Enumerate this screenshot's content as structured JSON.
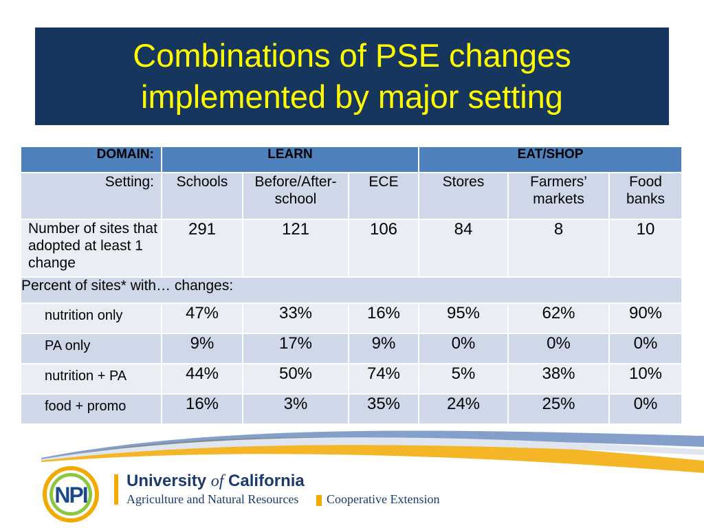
{
  "slide": {
    "title_line1": "Combinations of PSE changes",
    "title_line2": "implemented by major setting"
  },
  "table": {
    "domain_label": "DOMAIN:",
    "domains": [
      "LEARN",
      "EAT/SHOP"
    ],
    "setting_label": "Setting:",
    "settings": [
      "Schools",
      "Before/After-school",
      "ECE",
      "Stores",
      "Farmers’ markets",
      "Food banks"
    ],
    "count_label": "Number of sites that adopted at least 1 change",
    "counts": [
      "291",
      "121",
      "106",
      "84",
      "8",
      "10"
    ],
    "percent_heading": "Percent of sites* with… changes:",
    "rows": [
      {
        "label": "nutrition only",
        "values": [
          "47%",
          "33%",
          "16%",
          "95%",
          "62%",
          "90%"
        ]
      },
      {
        "label": "PA only",
        "values": [
          "9%",
          "17%",
          "9%",
          "0%",
          "0%",
          "0%"
        ]
      },
      {
        "label": "nutrition + PA",
        "values": [
          "44%",
          "50%",
          "74%",
          "5%",
          "38%",
          "10%"
        ]
      },
      {
        "label": "food + promo",
        "values": [
          "16%",
          "3%",
          "35%",
          "24%",
          "25%",
          "0%"
        ]
      }
    ]
  },
  "footer": {
    "logo_text": "NPI",
    "university_pre": "University ",
    "university_of": "of",
    "university_post": " California",
    "division": "Agriculture and Natural Resources",
    "extension": "Cooperative Extension"
  },
  "colors": {
    "title_bg": "#17365d",
    "title_text": "#ffff00",
    "header_bg": "#4f81bd",
    "row_dark": "#cfd8e8",
    "row_light": "#e9edf4",
    "accent_gold": "#f2a900",
    "accent_green": "#8dc63f",
    "uc_blue": "#1a3a6b"
  }
}
